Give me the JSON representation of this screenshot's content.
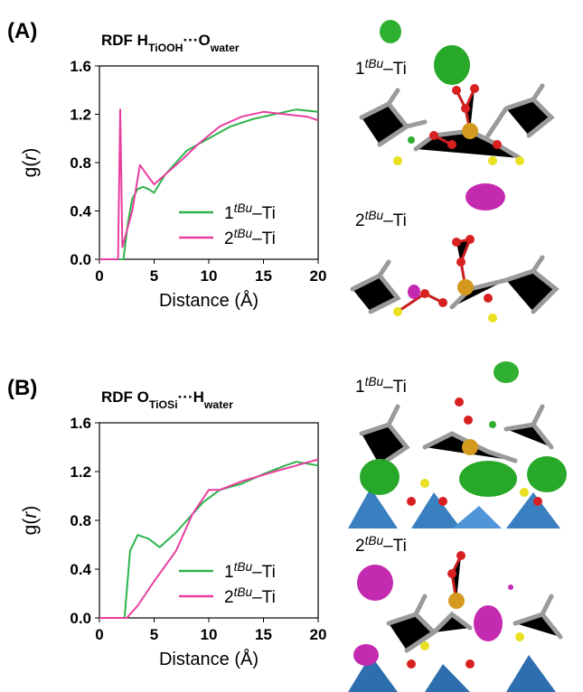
{
  "chart_data": [
    {
      "type": "line",
      "panel_label": "(A)",
      "title": [
        {
          "text": "RDF H"
        },
        {
          "text": "TiOOH",
          "sub": true
        },
        {
          "text": "···O"
        },
        {
          "text": "water",
          "sub": true
        }
      ],
      "xlabel": "Distance (Å)",
      "ylabel": [
        {
          "text": "g("
        },
        {
          "text": "r",
          "italic": true
        },
        {
          "text": ")"
        }
      ],
      "xlim": [
        0,
        20
      ],
      "xticks": [
        0,
        5,
        10,
        15,
        20
      ],
      "ylim": [
        0,
        1.6
      ],
      "yticks": [
        {
          "value": 0,
          "label": "0.0"
        },
        {
          "value": 0.4,
          "label": "0.4"
        },
        {
          "value": 0.8,
          "label": "0.8"
        },
        {
          "value": 1.2,
          "label": "1.2"
        },
        {
          "value": 1.6,
          "label": "1.6"
        }
      ],
      "legend": "lower right",
      "series": [
        {
          "name": [
            {
              "text": "1"
            },
            {
              "text": "tBu",
              "sup": true
            },
            {
              "text": "–Ti"
            }
          ],
          "color": "#2db34a",
          "x": [
            0,
            2.2,
            2.6,
            3,
            3.5,
            4,
            4.5,
            5,
            6,
            7,
            8,
            9,
            10,
            12,
            14,
            15,
            17,
            18,
            19,
            20
          ],
          "values": [
            0,
            0,
            0.3,
            0.5,
            0.58,
            0.6,
            0.58,
            0.55,
            0.7,
            0.8,
            0.9,
            0.95,
            1.0,
            1.1,
            1.16,
            1.18,
            1.22,
            1.24,
            1.23,
            1.22
          ]
        },
        {
          "name": [
            {
              "text": "2"
            },
            {
              "text": "tBu",
              "sup": true
            },
            {
              "text": "–Ti"
            }
          ],
          "color": "#e83e9f",
          "x": [
            0,
            1.7,
            1.9,
            2.1,
            2.4,
            3,
            3.7,
            4.5,
            5,
            6,
            7.5,
            9,
            11,
            13,
            15,
            17,
            19,
            20
          ],
          "values": [
            0,
            0,
            1.24,
            0.1,
            0.2,
            0.4,
            0.78,
            0.68,
            0.62,
            0.7,
            0.82,
            0.95,
            1.1,
            1.18,
            1.22,
            1.2,
            1.18,
            1.15
          ]
        }
      ],
      "image_labels": [
        [
          {
            "text": "1"
          },
          {
            "text": "tBu",
            "sup": true
          },
          {
            "text": "–Ti"
          }
        ],
        [
          {
            "text": "2"
          },
          {
            "text": "tBu",
            "sup": true
          },
          {
            "text": "–Ti"
          }
        ]
      ]
    },
    {
      "type": "line",
      "panel_label": "(B)",
      "title": [
        {
          "text": "RDF O"
        },
        {
          "text": "TiOSi",
          "sub": true
        },
        {
          "text": "···H"
        },
        {
          "text": "water",
          "sub": true
        }
      ],
      "xlabel": "Distance (Å)",
      "ylabel": [
        {
          "text": "g("
        },
        {
          "text": "r",
          "italic": true
        },
        {
          "text": ")"
        }
      ],
      "xlim": [
        0,
        20
      ],
      "xticks": [
        0,
        5,
        10,
        15,
        20
      ],
      "ylim": [
        0,
        1.6
      ],
      "yticks": [
        {
          "value": 0,
          "label": "0.0"
        },
        {
          "value": 0.4,
          "label": "0.4"
        },
        {
          "value": 0.8,
          "label": "0.8"
        },
        {
          "value": 1.2,
          "label": "1.2"
        },
        {
          "value": 1.6,
          "label": "1.6"
        }
      ],
      "legend": "lower right",
      "series": [
        {
          "name": [
            {
              "text": "1"
            },
            {
              "text": "tBu",
              "sup": true
            },
            {
              "text": "–Ti"
            }
          ],
          "color": "#2db34a",
          "x": [
            0,
            2.3,
            2.8,
            3.5,
            4.5,
            5.5,
            7,
            8,
            9.5,
            11,
            13,
            15,
            17,
            18,
            20
          ],
          "values": [
            0,
            0,
            0.55,
            0.68,
            0.65,
            0.58,
            0.7,
            0.8,
            0.95,
            1.05,
            1.1,
            1.18,
            1.25,
            1.28,
            1.25
          ]
        },
        {
          "name": [
            {
              "text": "2"
            },
            {
              "text": "tBu",
              "sup": true
            },
            {
              "text": "–Ti"
            }
          ],
          "color": "#e83e9f",
          "x": [
            0,
            2.5,
            3.5,
            5,
            7,
            8.5,
            10,
            11,
            13,
            16,
            18,
            20
          ],
          "values": [
            0,
            0,
            0.1,
            0.3,
            0.55,
            0.85,
            1.05,
            1.05,
            1.12,
            1.2,
            1.25,
            1.3
          ]
        }
      ],
      "image_labels": [
        [
          {
            "text": "1"
          },
          {
            "text": "tBu",
            "sup": true
          },
          {
            "text": "–Ti"
          }
        ],
        [
          {
            "text": "2"
          },
          {
            "text": "tBu",
            "sup": true
          },
          {
            "text": "–Ti"
          }
        ]
      ]
    }
  ]
}
